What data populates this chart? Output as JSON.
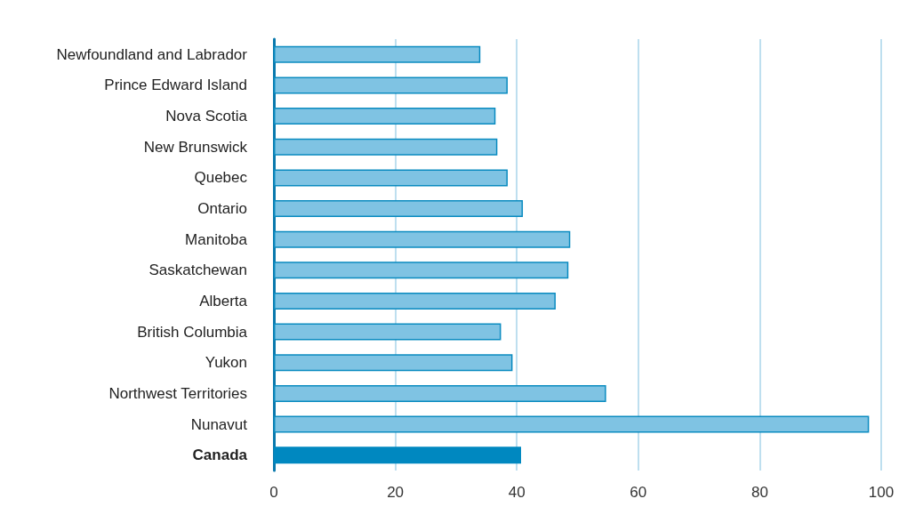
{
  "chart_data": {
    "type": "bar",
    "orientation": "horizontal",
    "categories": [
      "Newfoundland and Labrador",
      "Prince Edward Island",
      "Nova Scotia",
      "New Brunswick",
      "Quebec",
      "Ontario",
      "Manitoba",
      "Saskatchewan",
      "Alberta",
      "British Columbia",
      "Yukon",
      "Northwest Territories",
      "Nunavut",
      "Canada"
    ],
    "values": [
      34.0,
      38.5,
      36.5,
      36.8,
      38.5,
      41.0,
      48.8,
      48.5,
      46.4,
      37.4,
      39.3,
      54.7,
      98.0,
      40.7
    ],
    "colors": [
      "#7fc3e3",
      "#7fc3e3",
      "#7fc3e3",
      "#7fc3e3",
      "#7fc3e3",
      "#7fc3e3",
      "#7fc3e3",
      "#7fc3e3",
      "#7fc3e3",
      "#7fc3e3",
      "#7fc3e3",
      "#7fc3e3",
      "#7fc3e3",
      "#0088c0"
    ],
    "xlim": [
      0,
      100
    ],
    "xticks": [
      0,
      20,
      40,
      60,
      80,
      100
    ],
    "grid": "x"
  }
}
